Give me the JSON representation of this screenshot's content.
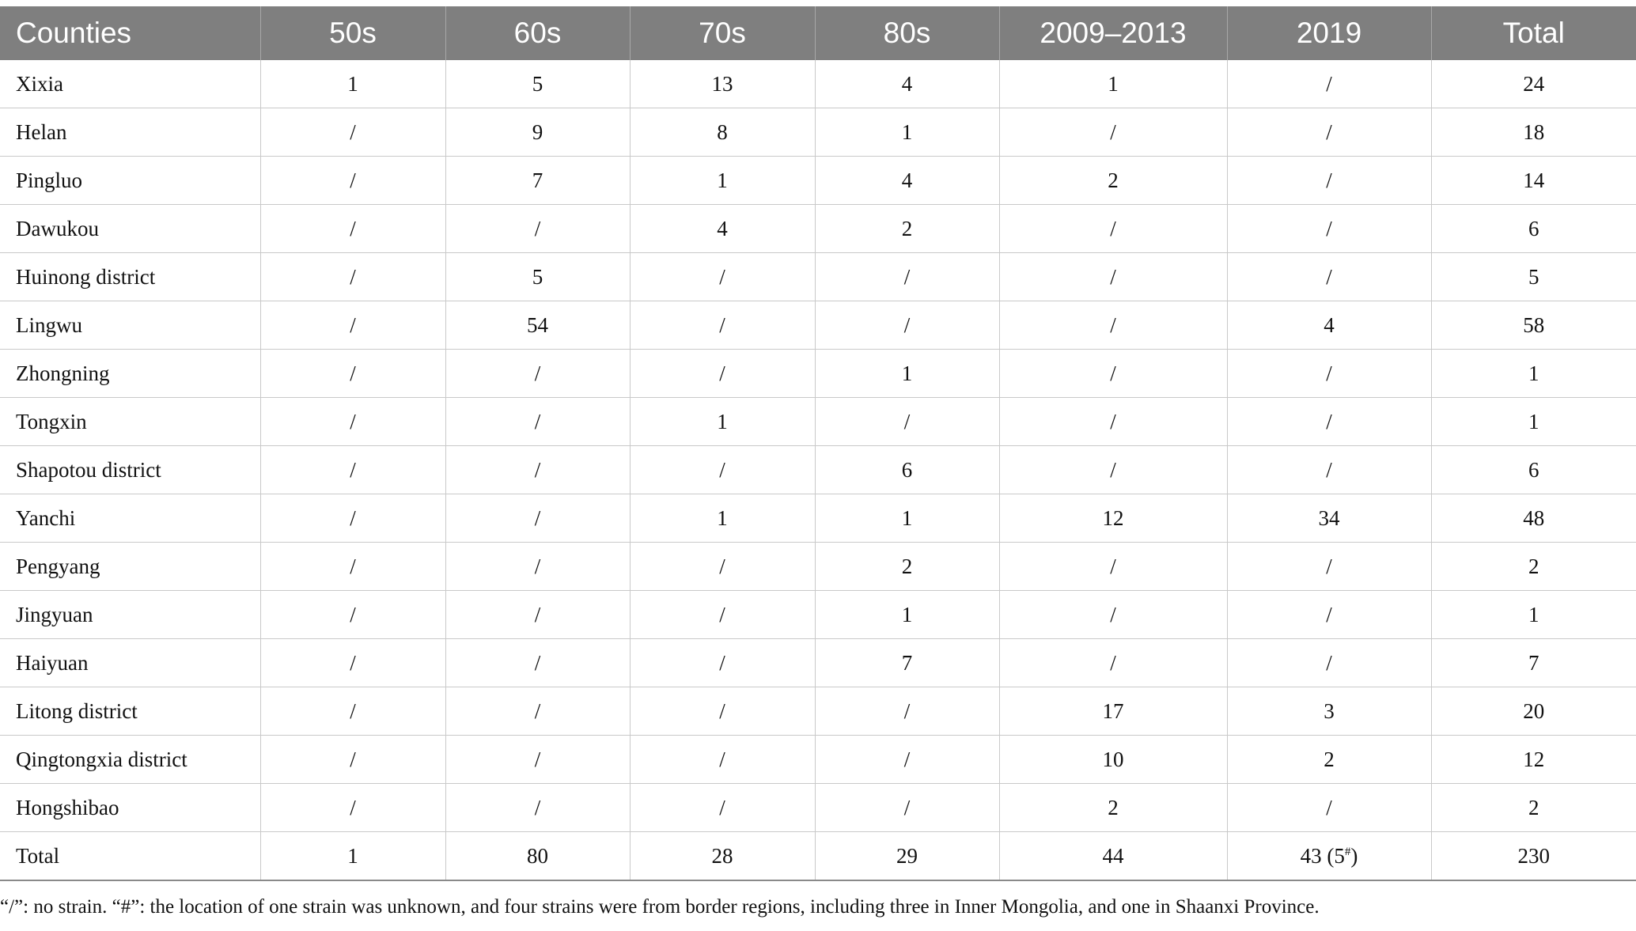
{
  "table": {
    "columns": [
      "Counties",
      "50s",
      "60s",
      "70s",
      "80s",
      "2009–2013",
      "2019",
      "Total"
    ],
    "rows": [
      [
        "Xixia",
        "1",
        "5",
        "13",
        "4",
        "1",
        "/",
        "24"
      ],
      [
        "Helan",
        "/",
        "9",
        "8",
        "1",
        "/",
        "/",
        "18"
      ],
      [
        "Pingluo",
        "/",
        "7",
        "1",
        "4",
        "2",
        "/",
        "14"
      ],
      [
        "Dawukou",
        "/",
        "/",
        "4",
        "2",
        "/",
        "/",
        "6"
      ],
      [
        "Huinong district",
        "/",
        "5",
        "/",
        "/",
        "/",
        "/",
        "5"
      ],
      [
        "Lingwu",
        "/",
        "54",
        "/",
        "/",
        "/",
        "4",
        "58"
      ],
      [
        "Zhongning",
        "/",
        "/",
        "/",
        "1",
        "/",
        "/",
        "1"
      ],
      [
        "Tongxin",
        "/",
        "/",
        "1",
        "/",
        "/",
        "/",
        "1"
      ],
      [
        "Shapotou district",
        "/",
        "/",
        "/",
        "6",
        "/",
        "/",
        "6"
      ],
      [
        "Yanchi",
        "/",
        "/",
        "1",
        "1",
        "12",
        "34",
        "48"
      ],
      [
        "Pengyang",
        "/",
        "/",
        "/",
        "2",
        "/",
        "/",
        "2"
      ],
      [
        "Jingyuan",
        "/",
        "/",
        "/",
        "1",
        "/",
        "/",
        "1"
      ],
      [
        "Haiyuan",
        "/",
        "/",
        "/",
        "7",
        "/",
        "/",
        "7"
      ],
      [
        "Litong district",
        "/",
        "/",
        "/",
        "/",
        "17",
        "3",
        "20"
      ],
      [
        "Qingtongxia district",
        "/",
        "/",
        "/",
        "/",
        "10",
        "2",
        "12"
      ],
      [
        "Hongshibao",
        "/",
        "/",
        "/",
        "/",
        "2",
        "/",
        "2"
      ]
    ],
    "total_row": {
      "label": "Total",
      "c1": "1",
      "c2": "80",
      "c3": "28",
      "c4": "29",
      "c5": "44",
      "c6_main": "43 (5",
      "c6_sup": "#",
      "c6_close": ")",
      "c7": "230"
    }
  },
  "footnote": "“/”: no strain. “#”: the location of one strain was unknown, and four strains were from border regions, including three in Inner Mongolia, and one in Shaanxi Province."
}
